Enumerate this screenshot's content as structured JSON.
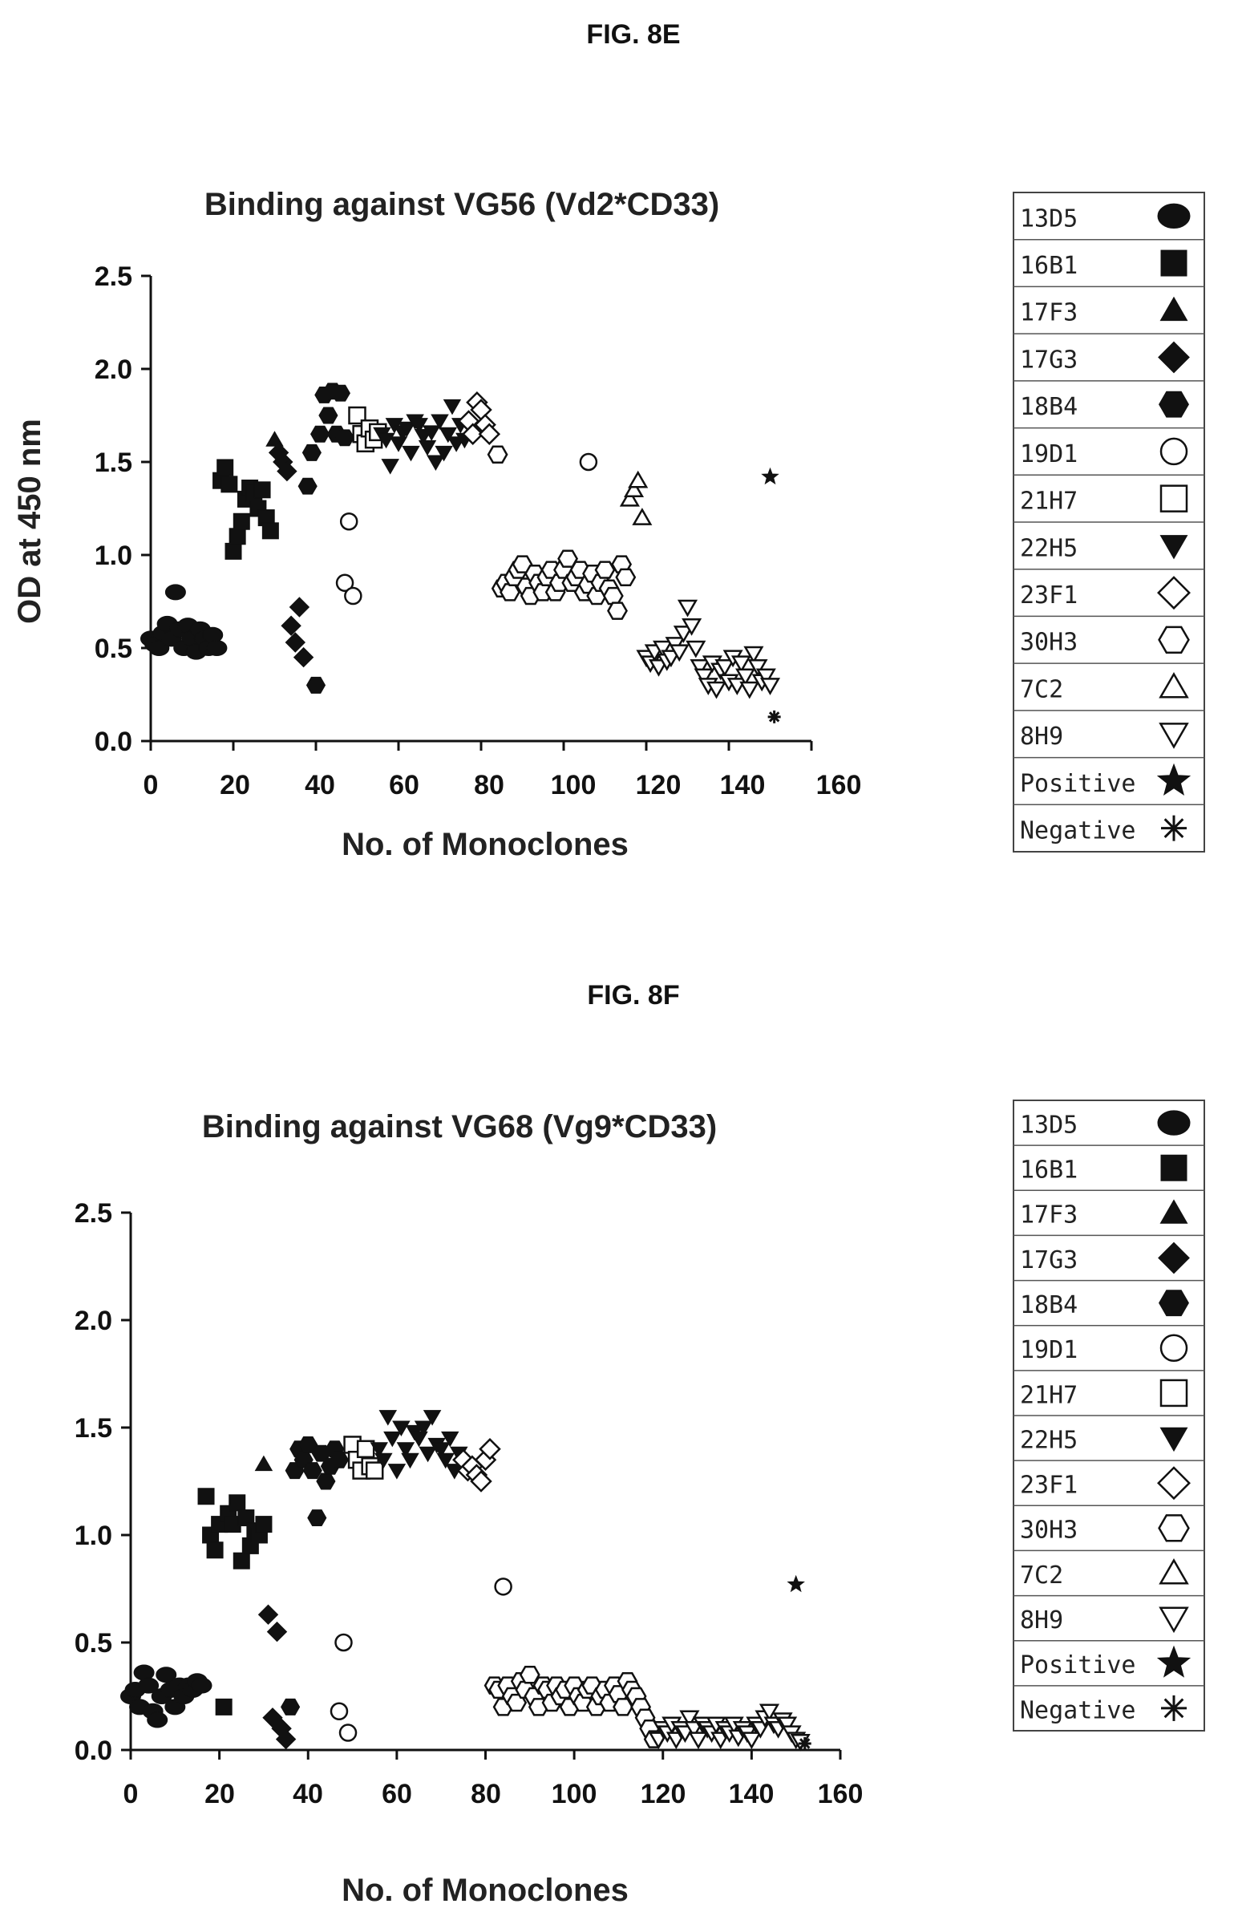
{
  "figures": [
    {
      "label": "FIG. 8E",
      "chart_data": {
        "type": "scatter",
        "title": "Binding against VG56 (Vd2*CD33)",
        "xlabel": "No. of Monoclones",
        "ylabel": "OD at 450 nm",
        "xlim": [
          0,
          160
        ],
        "ylim": [
          0,
          2.5
        ],
        "xticks": [
          "0",
          "20",
          "40",
          "60",
          "80",
          "100",
          "120",
          "140",
          "160"
        ],
        "yticks": [
          "0.0",
          "0.5",
          "1.0",
          "1.5",
          "2.0",
          "2.5"
        ],
        "legend_position": "right",
        "series": [
          {
            "name": "13D5",
            "marker": "ellipse-filled",
            "x": [
              0,
              1,
              2,
              3,
              4,
              5,
              6,
              7,
              8,
              9,
              10,
              11,
              12,
              13,
              14,
              15,
              16
            ],
            "y": [
              0.55,
              0.52,
              0.5,
              0.58,
              0.63,
              0.55,
              0.8,
              0.6,
              0.5,
              0.62,
              0.55,
              0.48,
              0.6,
              0.55,
              0.5,
              0.57,
              0.5
            ]
          },
          {
            "name": "16B1",
            "marker": "square-filled",
            "x": [
              17,
              18,
              19,
              20,
              21,
              22,
              23,
              24,
              25,
              26,
              27,
              28,
              29
            ],
            "y": [
              1.4,
              1.47,
              1.38,
              1.02,
              1.1,
              1.18,
              1.3,
              1.36,
              1.33,
              1.25,
              1.35,
              1.2,
              1.13
            ]
          },
          {
            "name": "17F3",
            "marker": "triangle-filled",
            "x": [
              30
            ],
            "y": [
              1.62
            ]
          },
          {
            "name": "17G3",
            "marker": "diamond-filled",
            "x": [
              31,
              32,
              33,
              34,
              35,
              36,
              37
            ],
            "y": [
              1.55,
              1.5,
              1.45,
              0.62,
              0.53,
              0.72,
              0.45
            ]
          },
          {
            "name": "18B4",
            "marker": "hexagon-filled",
            "x": [
              38,
              39,
              40,
              41,
              42,
              43,
              44,
              45,
              46,
              47
            ],
            "y": [
              1.37,
              1.55,
              0.3,
              1.65,
              1.86,
              1.75,
              1.88,
              1.65,
              1.87,
              1.63
            ]
          },
          {
            "name": "19D1",
            "marker": "circle-open",
            "x": [
              47,
              48,
              49,
              106
            ],
            "y": [
              0.85,
              1.18,
              0.78,
              1.5
            ]
          },
          {
            "name": "21H7",
            "marker": "square-open",
            "x": [
              50,
              51,
              52,
              53,
              54,
              55
            ],
            "y": [
              1.75,
              1.65,
              1.6,
              1.68,
              1.62,
              1.66
            ]
          },
          {
            "name": "22H5",
            "marker": "triangle-down-filled",
            "x": [
              56,
              57,
              58,
              59,
              60,
              61,
              62,
              63,
              64,
              65,
              66,
              67,
              68,
              69,
              70,
              71,
              72,
              73,
              74,
              75,
              76
            ],
            "y": [
              1.65,
              1.62,
              1.48,
              1.7,
              1.6,
              1.66,
              1.68,
              1.55,
              1.72,
              1.7,
              1.64,
              1.58,
              1.66,
              1.5,
              1.72,
              1.55,
              1.65,
              1.8,
              1.6,
              1.7,
              1.62
            ]
          },
          {
            "name": "23F1",
            "marker": "diamond-open",
            "x": [
              77,
              78,
              79,
              80,
              81,
              82
            ],
            "y": [
              1.72,
              1.65,
              1.82,
              1.78,
              1.7,
              1.65
            ]
          },
          {
            "name": "30H3",
            "marker": "hexagon-open",
            "x": [
              84,
              85,
              86,
              87,
              88,
              89,
              90,
              91,
              92,
              93,
              94,
              95,
              96,
              97,
              98,
              99,
              100,
              101,
              102,
              103,
              104,
              105,
              106,
              107,
              108,
              109,
              110,
              111,
              112,
              113,
              114,
              115
            ],
            "y": [
              1.54,
              0.82,
              0.85,
              0.8,
              0.88,
              0.92,
              0.95,
              0.83,
              0.78,
              0.9,
              0.85,
              0.8,
              0.88,
              0.92,
              0.8,
              0.85,
              0.92,
              0.98,
              0.85,
              0.88,
              0.92,
              0.8,
              0.84,
              0.9,
              0.78,
              0.85,
              0.92,
              0.82,
              0.78,
              0.7,
              0.95,
              0.88
            ]
          },
          {
            "name": "7C2",
            "marker": "triangle-open",
            "x": [
              116,
              117,
              118,
              119
            ],
            "y": [
              1.3,
              1.35,
              1.4,
              1.2
            ]
          },
          {
            "name": "8H9",
            "marker": "triangle-down-open",
            "x": [
              120,
              121,
              122,
              123,
              124,
              125,
              126,
              127,
              128,
              129,
              130,
              131,
              132,
              133,
              134,
              135,
              136,
              137,
              138,
              139,
              140,
              141,
              142,
              143,
              144,
              145,
              146,
              147,
              148,
              149,
              150
            ],
            "y": [
              0.45,
              0.42,
              0.48,
              0.4,
              0.5,
              0.43,
              0.45,
              0.52,
              0.48,
              0.58,
              0.72,
              0.62,
              0.5,
              0.4,
              0.35,
              0.3,
              0.42,
              0.28,
              0.38,
              0.4,
              0.32,
              0.45,
              0.3,
              0.42,
              0.35,
              0.28,
              0.47,
              0.4,
              0.32,
              0.35,
              0.3
            ]
          },
          {
            "name": "Positive",
            "marker": "star-filled",
            "x": [
              150
            ],
            "y": [
              1.42
            ]
          },
          {
            "name": "Negative",
            "marker": "asterisk",
            "x": [
              151
            ],
            "y": [
              0.13
            ]
          }
        ]
      },
      "legend": [
        "13D5",
        "16B1",
        "17F3",
        "17G3",
        "18B4",
        "19D1",
        "21H7",
        "22H5",
        "23F1",
        "30H3",
        "7C2",
        "8H9",
        "Positive",
        "Negative"
      ]
    },
    {
      "label": "FIG. 8F",
      "chart_data": {
        "type": "scatter",
        "title": "Binding against VG68 (Vg9*CD33)",
        "xlabel": "No. of Monoclones",
        "ylabel": "",
        "xlim": [
          0,
          160
        ],
        "ylim": [
          0,
          2.5
        ],
        "xticks": [
          "0",
          "20",
          "40",
          "60",
          "80",
          "100",
          "120",
          "140",
          "160"
        ],
        "yticks": [
          "0.0",
          "0.5",
          "1.0",
          "1.5",
          "2.0",
          "2.5"
        ],
        "legend_position": "right",
        "series": [
          {
            "name": "13D5",
            "marker": "ellipse-filled",
            "x": [
              0,
              1,
              2,
              3,
              4,
              5,
              6,
              7,
              8,
              9,
              10,
              11,
              12,
              13,
              14,
              15,
              16
            ],
            "y": [
              0.25,
              0.28,
              0.2,
              0.36,
              0.3,
              0.18,
              0.14,
              0.25,
              0.35,
              0.28,
              0.2,
              0.3,
              0.25,
              0.3,
              0.28,
              0.32,
              0.3
            ]
          },
          {
            "name": "16B1",
            "marker": "square-filled",
            "x": [
              17,
              18,
              19,
              20,
              21,
              22,
              23,
              24,
              25,
              26,
              27,
              28,
              29,
              30
            ],
            "y": [
              1.18,
              1.0,
              0.93,
              1.05,
              0.2,
              1.1,
              1.05,
              1.15,
              0.88,
              1.08,
              0.95,
              1.02,
              1.0,
              1.05
            ]
          },
          {
            "name": "17F3",
            "marker": "triangle-filled",
            "x": [
              30
            ],
            "y": [
              1.33
            ]
          },
          {
            "name": "17G3",
            "marker": "diamond-filled",
            "x": [
              31,
              32,
              33,
              34,
              35
            ],
            "y": [
              0.63,
              0.15,
              0.55,
              0.1,
              0.05
            ]
          },
          {
            "name": "18B4",
            "marker": "hexagon-filled",
            "x": [
              36,
              37,
              38,
              39,
              40,
              41,
              42,
              43,
              44,
              45,
              46,
              47
            ],
            "y": [
              0.2,
              1.3,
              1.4,
              1.35,
              1.42,
              1.3,
              1.08,
              1.38,
              1.25,
              1.32,
              1.4,
              1.35
            ]
          },
          {
            "name": "19D1",
            "marker": "circle-open",
            "x": [
              47,
              48,
              49,
              84
            ],
            "y": [
              0.18,
              0.5,
              0.08,
              0.76
            ]
          },
          {
            "name": "21H7",
            "marker": "square-open",
            "x": [
              50,
              51,
              52,
              53,
              54,
              55
            ],
            "y": [
              1.42,
              1.35,
              1.3,
              1.4,
              1.32,
              1.3
            ]
          },
          {
            "name": "22H5",
            "marker": "triangle-down-filled",
            "x": [
              56,
              57,
              58,
              59,
              60,
              61,
              62,
              63,
              64,
              65,
              66,
              67,
              68,
              69,
              70,
              71,
              72,
              73,
              74
            ],
            "y": [
              1.4,
              1.35,
              1.55,
              1.45,
              1.3,
              1.5,
              1.4,
              1.35,
              1.48,
              1.45,
              1.5,
              1.38,
              1.55,
              1.42,
              1.4,
              1.35,
              1.45,
              1.3,
              1.38
            ]
          },
          {
            "name": "23F1",
            "marker": "diamond-open",
            "x": [
              75,
              76,
              77,
              78,
              79,
              80,
              81
            ],
            "y": [
              1.35,
              1.3,
              1.32,
              1.28,
              1.25,
              1.35,
              1.4
            ]
          },
          {
            "name": "30H3",
            "marker": "hexagon-open",
            "x": [
              82,
              83,
              84,
              85,
              86,
              87,
              88,
              89,
              90,
              91,
              92,
              93,
              94,
              95,
              96,
              97,
              98,
              99,
              100,
              101,
              102,
              103,
              104,
              105,
              106,
              107,
              108,
              109,
              110,
              111,
              112,
              113,
              114,
              115,
              116,
              117,
              118
            ],
            "y": [
              0.3,
              0.28,
              0.2,
              0.3,
              0.25,
              0.22,
              0.32,
              0.28,
              0.35,
              0.25,
              0.2,
              0.3,
              0.28,
              0.22,
              0.3,
              0.25,
              0.28,
              0.2,
              0.3,
              0.25,
              0.22,
              0.28,
              0.3,
              0.2,
              0.25,
              0.28,
              0.22,
              0.3,
              0.26,
              0.2,
              0.32,
              0.28,
              0.25,
              0.2,
              0.15,
              0.1,
              0.05
            ]
          },
          {
            "name": "7C2",
            "marker": "triangle-open",
            "x": [],
            "y": []
          },
          {
            "name": "8H9",
            "marker": "triangle-down-open",
            "x": [
              119,
              120,
              121,
              122,
              123,
              124,
              125,
              126,
              127,
              128,
              129,
              130,
              131,
              132,
              133,
              134,
              135,
              136,
              137,
              138,
              139,
              140,
              141,
              142,
              143,
              144,
              145,
              146,
              147,
              148,
              149,
              150,
              151
            ],
            "y": [
              0.05,
              0.1,
              0.08,
              0.12,
              0.05,
              0.1,
              0.08,
              0.15,
              0.1,
              0.05,
              0.12,
              0.1,
              0.08,
              0.12,
              0.05,
              0.1,
              0.08,
              0.12,
              0.06,
              0.1,
              0.08,
              0.05,
              0.12,
              0.1,
              0.15,
              0.18,
              0.12,
              0.1,
              0.14,
              0.12,
              0.08,
              0.05,
              0.04
            ]
          },
          {
            "name": "Positive",
            "marker": "star-filled",
            "x": [
              150
            ],
            "y": [
              0.77
            ]
          },
          {
            "name": "Negative",
            "marker": "asterisk",
            "x": [
              152
            ],
            "y": [
              0.03
            ]
          }
        ]
      },
      "legend": [
        "13D5",
        "16B1",
        "17F3",
        "17G3",
        "18B4",
        "19D1",
        "21H7",
        "22H5",
        "23F1",
        "30H3",
        "7C2",
        "8H9",
        "Positive",
        "Negative"
      ]
    }
  ]
}
